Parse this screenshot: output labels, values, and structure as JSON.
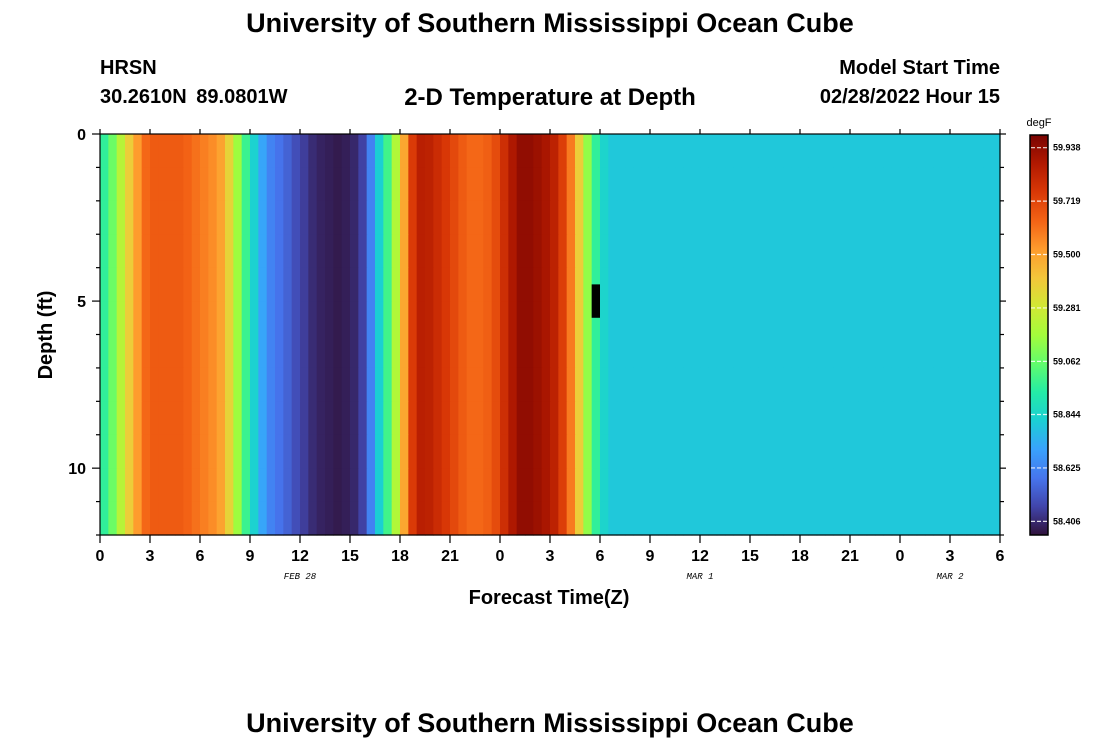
{
  "header": {
    "title": "University of Southern Mississippi Ocean Cube",
    "station": "HRSN",
    "coords": "30.2610N  89.0801W",
    "subtitle": "2-D Temperature at Depth",
    "start_label": "Model Start Time",
    "start_value": "02/28/2022 Hour 15"
  },
  "footer": {
    "title": "University of Southern Mississippi Ocean Cube"
  },
  "colors": {
    "palette": [
      "#30123b",
      "#4145ab",
      "#4675ed",
      "#39a2fc",
      "#1bcfd4",
      "#24eca6",
      "#61fc6c",
      "#a4fc3b",
      "#d1e834",
      "#f3c63a",
      "#fe9b2d",
      "#f36315",
      "#d93806",
      "#b11901",
      "#7a0402"
    ]
  },
  "chart_data": {
    "type": "heatmap",
    "title": "2-D Temperature at Depth",
    "xlabel": "Forecast Time(Z)",
    "ylabel": "Depth (ft)",
    "x_ticks": [
      "0",
      "3",
      "6",
      "9",
      "12",
      "15",
      "18",
      "21",
      "0",
      "3",
      "6",
      "9",
      "12",
      "15",
      "18",
      "21",
      "0",
      "3",
      "6"
    ],
    "x_range_hours": [
      0,
      54
    ],
    "date_labels": [
      {
        "text": "FEB 28",
        "hour": 12
      },
      {
        "text": "MAR 1",
        "hour": 36
      },
      {
        "text": "MAR 2",
        "hour": 51
      }
    ],
    "y_ticks": [
      "0",
      "5",
      "10"
    ],
    "y_range_ft": [
      0,
      12
    ],
    "y_inverted": true,
    "colorbar": {
      "unit": "degF",
      "min": 58.35,
      "max": 59.99,
      "labels": [
        "59.938",
        "59.719",
        "59.500",
        "59.281",
        "59.062",
        "58.844",
        "58.625",
        "58.406"
      ]
    },
    "cell_hours": 0.5,
    "cell_depth_ft": 1,
    "missing_cell": {
      "hour": 29.5,
      "depth_from": 4.5,
      "depth_to": 5.5
    },
    "temperature_degF": [
      [
        58.96,
        59.07,
        59.22,
        59.38,
        59.52,
        59.63,
        59.66,
        59.66,
        59.66,
        59.66,
        59.64,
        59.61,
        59.58,
        59.55,
        59.5,
        59.36,
        59.16,
        58.98,
        58.83,
        58.71,
        58.62,
        58.58,
        58.54,
        58.49,
        58.45,
        58.41,
        58.39,
        58.38,
        58.37,
        58.38,
        58.4,
        58.46,
        58.62,
        58.82,
        58.99,
        59.2,
        59.49,
        59.75,
        59.85,
        59.84,
        59.8,
        59.76,
        59.71,
        59.66,
        59.63,
        59.63,
        59.65,
        59.7,
        59.79,
        59.88,
        59.94,
        59.94,
        59.92,
        59.89,
        59.84,
        59.74,
        59.59,
        59.38,
        59.14,
        58.96,
        58.84,
        58.8,
        58.8,
        58.8,
        58.8,
        58.8,
        58.8,
        58.8,
        58.8,
        58.8,
        58.8,
        58.8,
        58.8,
        58.8,
        58.8,
        58.8,
        58.8,
        58.8,
        58.8,
        58.8,
        58.8,
        58.8,
        58.8,
        58.8,
        58.8,
        58.8,
        58.8,
        58.8,
        58.8,
        58.8,
        58.8,
        58.8,
        58.8,
        58.8,
        58.8,
        58.8,
        58.8,
        58.8,
        58.8,
        58.8,
        58.8,
        58.8,
        58.8,
        58.8,
        58.8,
        58.8,
        58.8,
        58.8
      ],
      [
        58.96,
        59.07,
        59.22,
        59.38,
        59.52,
        59.63,
        59.66,
        59.66,
        59.66,
        59.66,
        59.64,
        59.61,
        59.58,
        59.55,
        59.5,
        59.36,
        59.16,
        58.98,
        58.83,
        58.71,
        58.62,
        58.58,
        58.54,
        58.49,
        58.45,
        58.41,
        58.39,
        58.38,
        58.37,
        58.38,
        58.4,
        58.46,
        58.62,
        58.82,
        58.99,
        59.2,
        59.49,
        59.75,
        59.85,
        59.84,
        59.8,
        59.76,
        59.71,
        59.66,
        59.63,
        59.63,
        59.65,
        59.7,
        59.79,
        59.88,
        59.94,
        59.94,
        59.92,
        59.89,
        59.84,
        59.74,
        59.59,
        59.38,
        59.14,
        58.96,
        58.84,
        58.8,
        58.8,
        58.8,
        58.8,
        58.8,
        58.8,
        58.8,
        58.8,
        58.8,
        58.8,
        58.8,
        58.8,
        58.8,
        58.8,
        58.8,
        58.8,
        58.8,
        58.8,
        58.8,
        58.8,
        58.8,
        58.8,
        58.8,
        58.8,
        58.8,
        58.8,
        58.8,
        58.8,
        58.8,
        58.8,
        58.8,
        58.8,
        58.8,
        58.8,
        58.8,
        58.8,
        58.8,
        58.8,
        58.8,
        58.8,
        58.8,
        58.8,
        58.8,
        58.8,
        58.8,
        58.8,
        58.8
      ]
    ]
  }
}
